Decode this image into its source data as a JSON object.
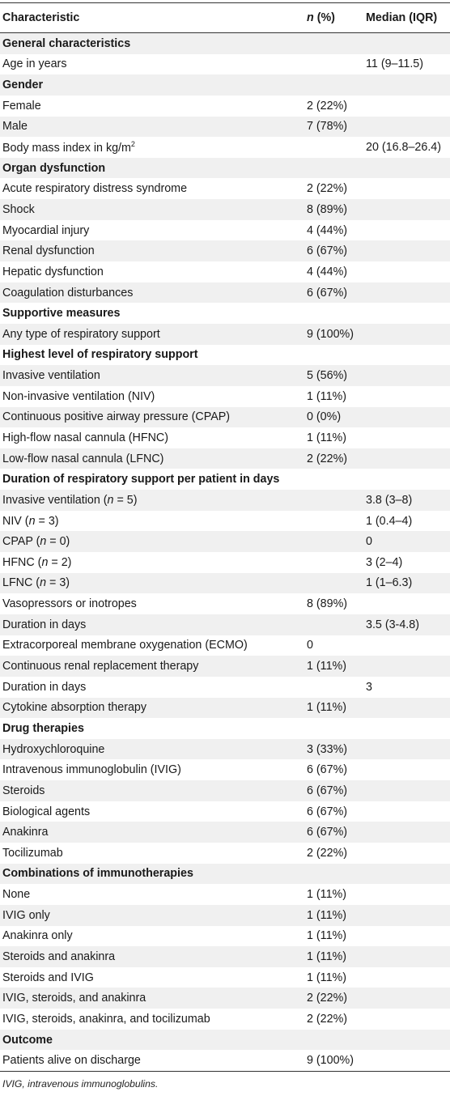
{
  "header": {
    "characteristic": "Characteristic",
    "n_label": "n",
    "pct_label": " (%)",
    "median_label": "Median (IQR)"
  },
  "rows": [
    {
      "type": "section",
      "label": "General characteristics"
    },
    {
      "type": "data",
      "label": "Age in years",
      "n": "",
      "median": "11 (9–11.5)"
    },
    {
      "type": "section",
      "label": "Gender"
    },
    {
      "type": "data",
      "label": "Female",
      "n": "2 (22%)",
      "median": ""
    },
    {
      "type": "data",
      "label": "Male",
      "n": "7 (78%)",
      "median": ""
    },
    {
      "type": "data",
      "label": "Body mass index in kg/m",
      "sup": "2",
      "n": "",
      "median": "20 (16.8–26.4)"
    },
    {
      "type": "section",
      "label": "Organ dysfunction"
    },
    {
      "type": "data",
      "label": "Acute respiratory distress syndrome",
      "n": "2 (22%)",
      "median": ""
    },
    {
      "type": "data",
      "label": "Shock",
      "n": "8 (89%)",
      "median": ""
    },
    {
      "type": "data",
      "label": "Myocardial injury",
      "n": "4 (44%)",
      "median": ""
    },
    {
      "type": "data",
      "label": "Renal dysfunction",
      "n": "6 (67%)",
      "median": ""
    },
    {
      "type": "data",
      "label": "Hepatic dysfunction",
      "n": "4 (44%)",
      "median": ""
    },
    {
      "type": "data",
      "label": "Coagulation disturbances",
      "n": "6 (67%)",
      "median": ""
    },
    {
      "type": "section",
      "label": "Supportive measures"
    },
    {
      "type": "data",
      "label": "Any type of respiratory support",
      "n": "9 (100%)",
      "median": ""
    },
    {
      "type": "section",
      "label": "Highest level of respiratory support"
    },
    {
      "type": "data",
      "label": "Invasive ventilation",
      "n": "5 (56%)",
      "median": ""
    },
    {
      "type": "data",
      "label": "Non-invasive ventilation (NIV)",
      "n": "1 (11%)",
      "median": ""
    },
    {
      "type": "data",
      "label": "Continuous positive airway pressure (CPAP)",
      "n": "0 (0%)",
      "median": ""
    },
    {
      "type": "data",
      "label": "High-flow nasal cannula (HFNC)",
      "n": "1 (11%)",
      "median": ""
    },
    {
      "type": "data",
      "label": "Low-flow nasal cannula (LFNC)",
      "n": "2 (22%)",
      "median": ""
    },
    {
      "type": "section",
      "label": "Duration of respiratory support per patient in days"
    },
    {
      "type": "data",
      "label": "Invasive ventilation (",
      "nvar": "n",
      "label_tail": " = 5)",
      "n": "",
      "median": "3.8 (3–8)"
    },
    {
      "type": "data",
      "label": "NIV (",
      "nvar": "n",
      "label_tail": " = 3)",
      "n": "",
      "median": "1 (0.4–4)"
    },
    {
      "type": "data",
      "label": "CPAP (",
      "nvar": "n",
      "label_tail": " = 0)",
      "n": "",
      "median": "0"
    },
    {
      "type": "data",
      "label": "HFNC (",
      "nvar": "n",
      "label_tail": " = 2)",
      "n": "",
      "median": "3 (2–4)"
    },
    {
      "type": "data",
      "label": "LFNC (",
      "nvar": "n",
      "label_tail": " = 3)",
      "n": "",
      "median": "1 (1–6.3)"
    },
    {
      "type": "data",
      "label": "Vasopressors or inotropes",
      "n": "8 (89%)",
      "median": ""
    },
    {
      "type": "data",
      "label": "Duration in days",
      "n": "",
      "median": "3.5 (3-4.8)"
    },
    {
      "type": "data",
      "label": "Extracorporeal membrane oxygenation (ECMO)",
      "n": "0",
      "median": ""
    },
    {
      "type": "data",
      "label": "Continuous renal replacement therapy",
      "n": "1 (11%)",
      "median": ""
    },
    {
      "type": "data",
      "label": "Duration in days",
      "n": "",
      "median": "3"
    },
    {
      "type": "data",
      "label": "Cytokine absorption therapy",
      "n": "1 (11%)",
      "median": ""
    },
    {
      "type": "section",
      "label": "Drug therapies"
    },
    {
      "type": "data",
      "label": "Hydroxychloroquine",
      "n": "3 (33%)",
      "median": ""
    },
    {
      "type": "data",
      "label": "Intravenous immunoglobulin (IVIG)",
      "n": "6 (67%)",
      "median": ""
    },
    {
      "type": "data",
      "label": "Steroids",
      "n": "6 (67%)",
      "median": ""
    },
    {
      "type": "data",
      "label": "Biological agents",
      "n": "6 (67%)",
      "median": ""
    },
    {
      "type": "data",
      "label": "Anakinra",
      "n": "6 (67%)",
      "median": ""
    },
    {
      "type": "data",
      "label": "Tocilizumab",
      "n": "2 (22%)",
      "median": ""
    },
    {
      "type": "section",
      "label": "Combinations of immunotherapies"
    },
    {
      "type": "data",
      "label": "None",
      "n": "1 (11%)",
      "median": ""
    },
    {
      "type": "data",
      "label": "IVIG only",
      "n": "1 (11%)",
      "median": ""
    },
    {
      "type": "data",
      "label": "Anakinra only",
      "n": "1 (11%)",
      "median": ""
    },
    {
      "type": "data",
      "label": "Steroids and anakinra",
      "n": "1 (11%)",
      "median": ""
    },
    {
      "type": "data",
      "label": "Steroids and IVIG",
      "n": "1 (11%)",
      "median": ""
    },
    {
      "type": "data",
      "label": "IVIG, steroids, and anakinra",
      "n": "2 (22%)",
      "median": ""
    },
    {
      "type": "data",
      "label": "IVIG, steroids, anakinra, and tocilizumab",
      "n": "2 (22%)",
      "median": ""
    },
    {
      "type": "section",
      "label": "Outcome"
    },
    {
      "type": "data",
      "label": "Patients alive on discharge",
      "n": "9 (100%)",
      "median": ""
    }
  ],
  "footnote": "IVIG, intravenous immunoglobulins.",
  "colors": {
    "stripe": "#f0f0f0",
    "rule": "#333333"
  }
}
